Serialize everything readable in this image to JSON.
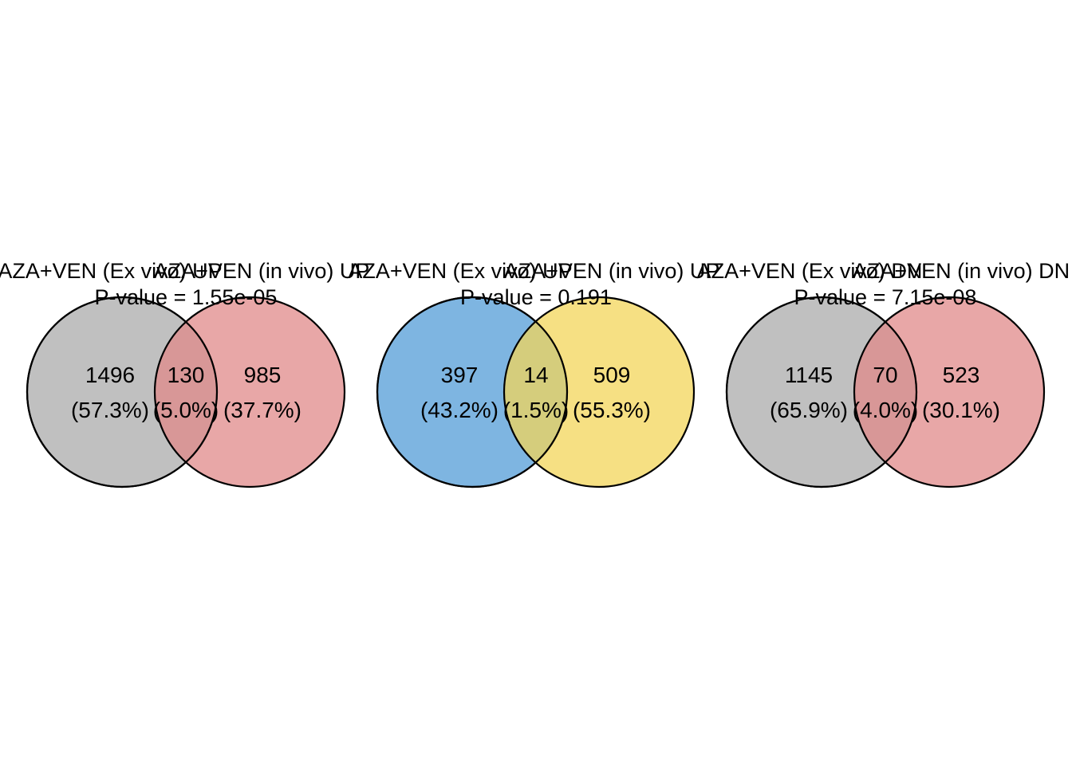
{
  "diagrams": [
    {
      "set_a_label": "AZA+VEN (Ex vivo) UP",
      "set_b_label": "AZA+VEN (in vivo) UP",
      "pvalue_text": "P-value = 1.55e-05",
      "only_a": {
        "count": "1496",
        "percent": "(57.3%)"
      },
      "both": {
        "count": "130",
        "percent": "(5.0%)"
      },
      "only_b": {
        "count": "985",
        "percent": "(37.7%)"
      },
      "color_a": "#bdbdbd",
      "color_b": "#e08a8a"
    },
    {
      "set_a_label": "AZA+VEN (Ex vivo) UP",
      "set_b_label": "AZA+VEN (in vivo) UP",
      "pvalue_text": "P-value = 0.191",
      "only_a": {
        "count": "397",
        "percent": "(43.2%)"
      },
      "both": {
        "count": "14",
        "percent": "(1.5%)"
      },
      "only_b": {
        "count": "509",
        "percent": "(55.3%)"
      },
      "color_a": "#5ea3d9",
      "color_b": "#f3d55a"
    },
    {
      "set_a_label": "AZA+VEN (Ex vivo) DN",
      "set_b_label": "AZA+VEN (in vivo) DN",
      "pvalue_text": "P-value = 7.15e-08",
      "only_a": {
        "count": "1145",
        "percent": "(65.9%)"
      },
      "both": {
        "count": "70",
        "percent": "(4.0%)"
      },
      "only_b": {
        "count": "523",
        "percent": "(30.1%)"
      },
      "color_a": "#bdbdbd",
      "color_b": "#e08a8a"
    }
  ]
}
